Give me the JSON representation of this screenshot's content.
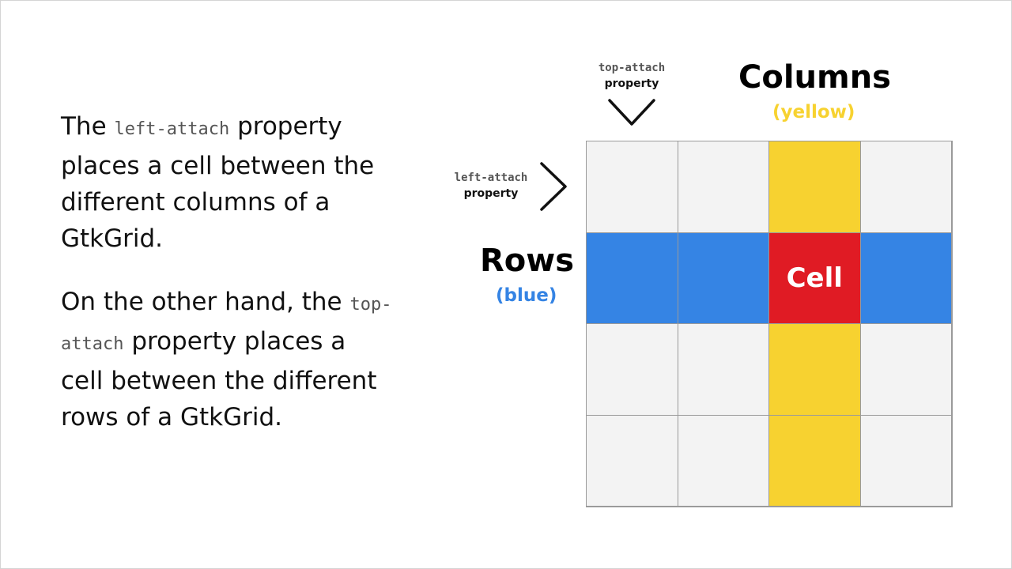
{
  "paragraph1": {
    "before": "The",
    "code": "left-attach",
    "after": "property places a cell between the different columns of a GtkGrid."
  },
  "paragraph2": {
    "before": "On the other hand, the",
    "code": "top-attach",
    "after": "property places a cell between the different rows of a GtkGrid."
  },
  "top_attach_label": {
    "code": "top-attach",
    "word": "property"
  },
  "left_attach_label": {
    "code": "left-attach",
    "word": "property"
  },
  "columns": {
    "title": "Columns",
    "subtitle": "(yellow)"
  },
  "rows": {
    "title": "Rows",
    "subtitle": "(blue)"
  },
  "cell_label": "Cell",
  "colors": {
    "yellow": "#f7d230",
    "blue": "#3584e4",
    "red": "#e01b24",
    "empty": "#f3f3f3"
  },
  "grid": {
    "rows": 4,
    "columns": 4,
    "highlight_row": 1,
    "highlight_column": 2
  }
}
